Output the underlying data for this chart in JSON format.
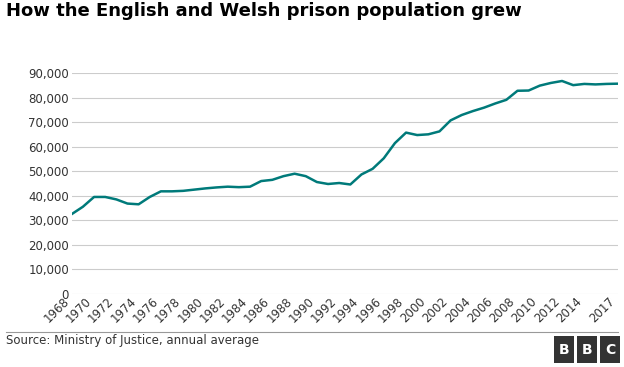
{
  "title": "How the English and Welsh prison population grew",
  "source_text": "Source: Ministry of Justice, annual average",
  "line_color": "#007a7a",
  "background_color": "#ffffff",
  "plot_bg_color": "#ffffff",
  "grid_color": "#cccccc",
  "years": [
    1968,
    1969,
    1970,
    1971,
    1972,
    1973,
    1974,
    1975,
    1976,
    1977,
    1978,
    1979,
    1980,
    1981,
    1982,
    1983,
    1984,
    1985,
    1986,
    1987,
    1988,
    1989,
    1990,
    1991,
    1992,
    1993,
    1994,
    1995,
    1996,
    1997,
    1998,
    1999,
    2000,
    2001,
    2002,
    2003,
    2004,
    2005,
    2006,
    2007,
    2008,
    2009,
    2010,
    2011,
    2012,
    2013,
    2014,
    2015,
    2016,
    2017
  ],
  "values": [
    32500,
    35500,
    39500,
    39500,
    38500,
    36800,
    36500,
    39500,
    41800,
    41800,
    42000,
    42500,
    43000,
    43400,
    43700,
    43500,
    43700,
    46000,
    46500,
    48000,
    49000,
    48000,
    45600,
    44800,
    45200,
    44600,
    48700,
    51000,
    55300,
    61500,
    65800,
    64800,
    65100,
    66300,
    70800,
    73000,
    74600,
    76000,
    77700,
    79200,
    82900,
    83000,
    85000,
    86100,
    86900,
    85200,
    85700,
    85500,
    85700,
    85800
  ],
  "ylim": [
    0,
    90000
  ],
  "yticks": [
    0,
    10000,
    20000,
    30000,
    40000,
    50000,
    60000,
    70000,
    80000,
    90000
  ],
  "xtick_years": [
    1968,
    1970,
    1972,
    1974,
    1976,
    1978,
    1980,
    1982,
    1984,
    1986,
    1988,
    1990,
    1992,
    1994,
    1996,
    1998,
    2000,
    2002,
    2004,
    2006,
    2008,
    2010,
    2012,
    2014,
    2017
  ],
  "line_width": 1.8,
  "title_fontsize": 13,
  "tick_fontsize": 8.5,
  "source_fontsize": 8.5,
  "bbc_fontsize": 10,
  "footer_line_color": "#999999",
  "bbc_bg_color": "#555555"
}
